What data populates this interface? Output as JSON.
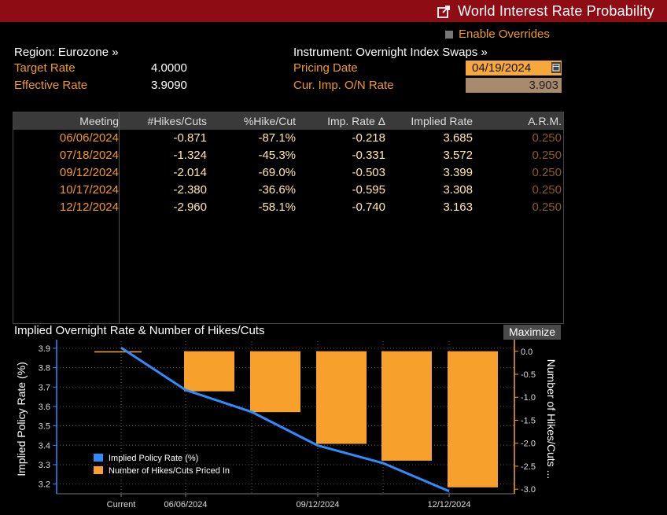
{
  "window": {
    "title": "World Interest Rate Probability",
    "enable_overrides": "Enable Overrides"
  },
  "left": {
    "region": "Region: Eurozone »",
    "target_rate_label": "Target Rate",
    "target_rate": "4.0000",
    "effective_rate_label": "Effective Rate",
    "effective_rate": "3.9090"
  },
  "right": {
    "instrument": "Instrument: Overnight Index Swaps »",
    "pricing_date_label": "Pricing Date",
    "pricing_date": "04/19/2024",
    "cur_imp_label": "Cur. Imp. O/N Rate",
    "cur_imp_rate": "3.903"
  },
  "table": {
    "headers": [
      "Meeting",
      "#Hikes/Cuts",
      "%Hike/Cut",
      "Imp. Rate Δ",
      "Implied Rate",
      "A.R.M."
    ],
    "rows": [
      [
        "06/06/2024",
        "-0.871",
        "-87.1%",
        "-0.218",
        "3.685",
        "0.250"
      ],
      [
        "07/18/2024",
        "-1.324",
        "-45.3%",
        "-0.331",
        "3.572",
        "0.250"
      ],
      [
        "09/12/2024",
        "-2.014",
        "-69.0%",
        "-0.503",
        "3.399",
        "0.250"
      ],
      [
        "10/17/2024",
        "-2.380",
        "-36.6%",
        "-0.595",
        "3.308",
        "0.250"
      ],
      [
        "12/12/2024",
        "-2.960",
        "-58.1%",
        "-0.740",
        "3.163",
        "0.250"
      ]
    ]
  },
  "chart": {
    "title": "Implied Overnight Rate & Number of Hikes/Cuts",
    "maximize": "Maximize"
  },
  "chart_data": {
    "type": "bar",
    "title": "Implied Overnight Rate & Number of Hikes/Cuts",
    "categories": [
      "Current",
      "06/06/2024",
      "07/18/2024",
      "09/12/2024",
      "10/17/2024",
      "12/12/2024"
    ],
    "x_tick_labels": [
      "Current",
      "06/06/2024",
      "09/12/2024",
      "12/12/2024"
    ],
    "series": [
      {
        "name": "Implied Policy Rate (%)",
        "type": "line",
        "axis": "left",
        "color": "#2f8cff",
        "values": [
          3.903,
          3.685,
          3.572,
          3.399,
          3.308,
          3.163
        ]
      },
      {
        "name": "Number of Hikes/Cuts Priced In",
        "type": "bar",
        "axis": "right",
        "color": "#f7a12c",
        "values": [
          0,
          -0.871,
          -1.324,
          -2.014,
          -2.38,
          -2.96
        ]
      }
    ],
    "ylabel": "Implied Policy Rate (%)",
    "y2label": "Number of Hikes/Cuts ...",
    "ylim": [
      3.15,
      3.92
    ],
    "y2lim": [
      -3.1,
      0.15
    ],
    "yticks": [
      "3.9",
      "3.8",
      "3.7",
      "3.6",
      "3.5",
      "3.4",
      "3.3",
      "3.2"
    ],
    "y2ticks": [
      "0.0",
      "-0.5",
      "-1.0",
      "-1.5",
      "-2.0",
      "-2.5",
      "-3.0"
    ],
    "grid": true,
    "legend": "bottom-left"
  }
}
